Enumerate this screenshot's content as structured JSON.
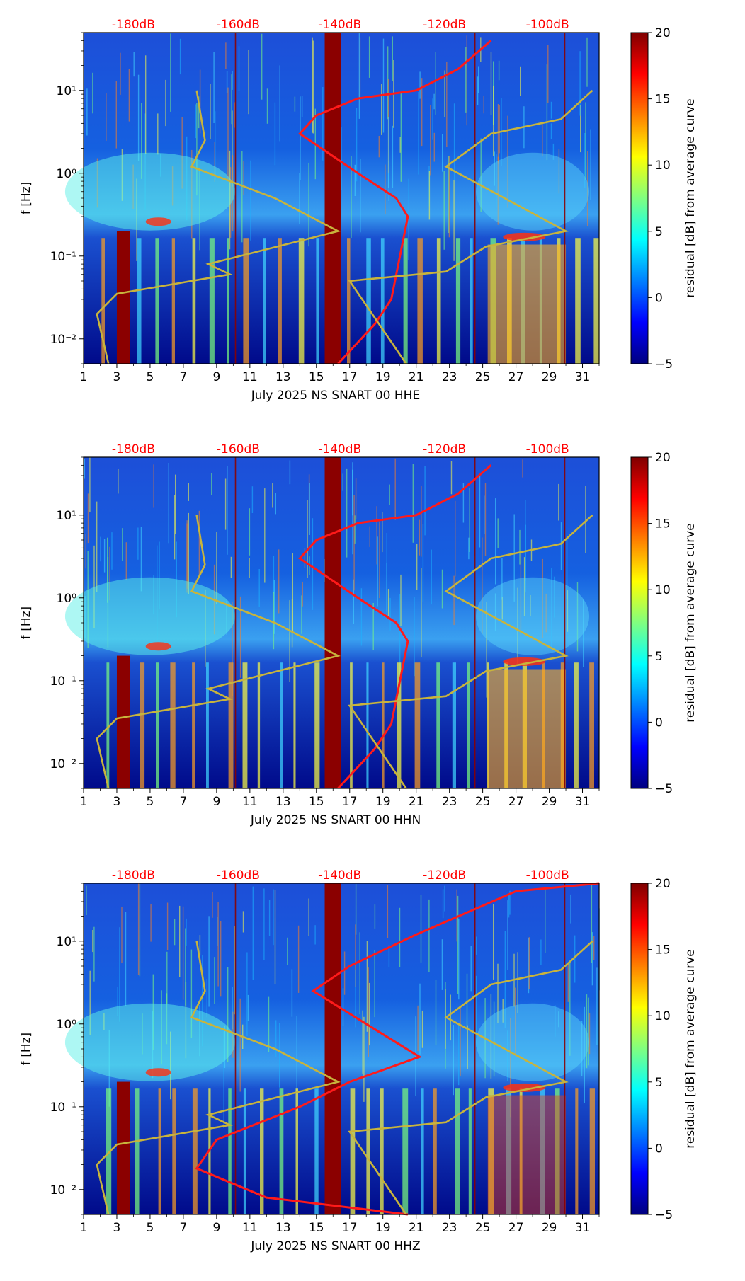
{
  "chart_data": [
    {
      "type": "heatmap",
      "xlabel": "July 2025 NS SNART 00 HHE",
      "ylabel": "f [Hz]",
      "x_ticks": [
        "1",
        "3",
        "5",
        "7",
        "9",
        "11",
        "13",
        "15",
        "17",
        "19",
        "21",
        "23",
        "25",
        "27",
        "29",
        "31"
      ],
      "y_ticks": [
        "10⁻²",
        "10⁻¹",
        "10⁰",
        "10¹"
      ],
      "top_ticks": [
        "-180dB",
        "-160dB",
        "-140dB",
        "-120dB",
        "-100dB"
      ],
      "colorbar": {
        "label": "residual [dB] from average curve",
        "ticks": [
          "20",
          "15",
          "10",
          "5",
          "0",
          "−5"
        ],
        "range": [
          -5,
          20
        ]
      },
      "xlim": [
        1,
        32
      ],
      "ylim": [
        0.005,
        50
      ]
    },
    {
      "type": "heatmap",
      "xlabel": "July 2025 NS SNART 00 HHN",
      "ylabel": "f [Hz]",
      "x_ticks": [
        "1",
        "3",
        "5",
        "7",
        "9",
        "11",
        "13",
        "15",
        "17",
        "19",
        "21",
        "23",
        "25",
        "27",
        "29",
        "31"
      ],
      "y_ticks": [
        "10⁻²",
        "10⁻¹",
        "10⁰",
        "10¹"
      ],
      "top_ticks": [
        "-180dB",
        "-160dB",
        "-140dB",
        "-120dB",
        "-100dB"
      ],
      "colorbar": {
        "label": "residual [dB] from average curve",
        "ticks": [
          "20",
          "15",
          "10",
          "5",
          "0",
          "−5"
        ],
        "range": [
          -5,
          20
        ]
      },
      "xlim": [
        1,
        32
      ],
      "ylim": [
        0.005,
        50
      ]
    },
    {
      "type": "heatmap",
      "xlabel": "July 2025 NS SNART 00 HHZ",
      "ylabel": "f [Hz]",
      "x_ticks": [
        "1",
        "3",
        "5",
        "7",
        "9",
        "11",
        "13",
        "15",
        "17",
        "19",
        "21",
        "23",
        "25",
        "27",
        "29",
        "31"
      ],
      "y_ticks": [
        "10⁻²",
        "10⁻¹",
        "10⁰",
        "10¹"
      ],
      "top_ticks": [
        "-180dB",
        "-160dB",
        "-140dB",
        "-120dB",
        "-100dB"
      ],
      "colorbar": {
        "label": "residual [dB] from average curve",
        "ticks": [
          "20",
          "15",
          "10",
          "5",
          "0",
          "−5"
        ],
        "range": [
          -5,
          20
        ]
      },
      "xlim": [
        1,
        32
      ],
      "ylim": [
        0.005,
        50
      ]
    }
  ],
  "colors": {
    "background": "#0a2fa8",
    "hot_column": "#8b0000",
    "red_curve": "#ff1a1a",
    "yellow_curve": "#c8b43c",
    "top_tick_text": "#ff0000"
  }
}
